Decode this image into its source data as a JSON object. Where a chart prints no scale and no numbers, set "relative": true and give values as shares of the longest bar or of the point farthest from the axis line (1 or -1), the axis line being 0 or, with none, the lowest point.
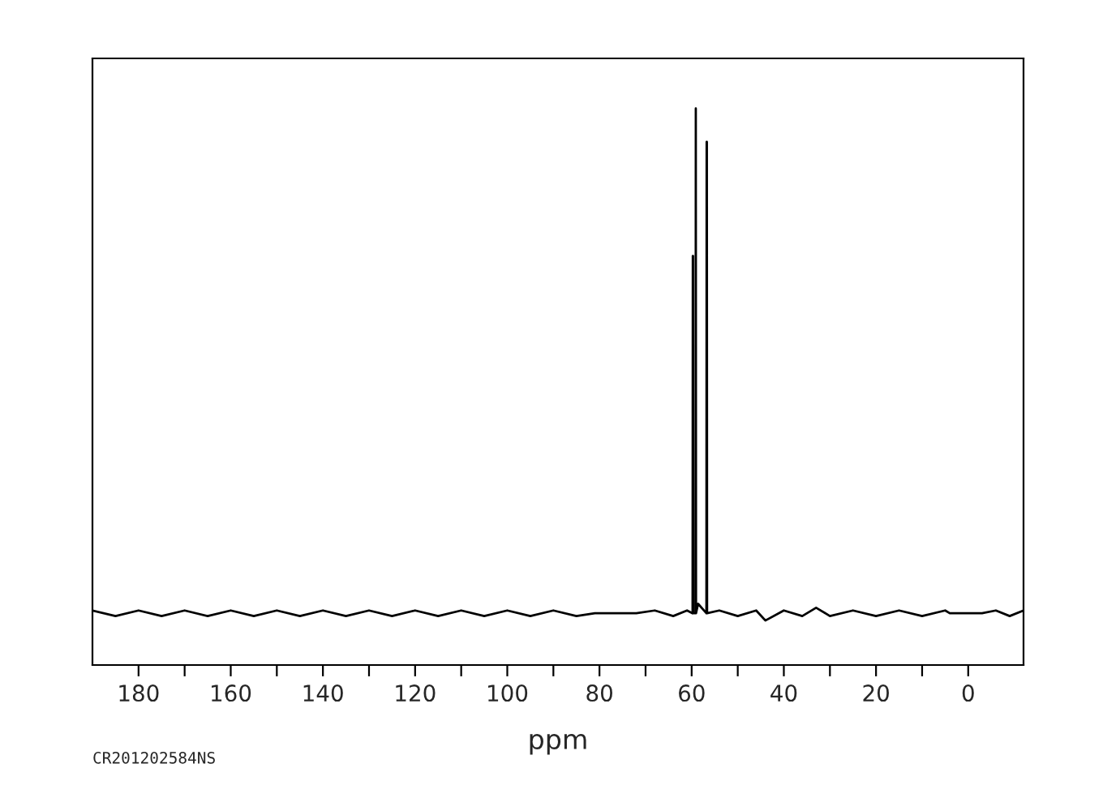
{
  "chart_data": {
    "type": "line",
    "relative": true,
    "xlabel": "ppm",
    "annotations": [
      "CR201202584NS"
    ],
    "xlim": [
      190,
      -12
    ],
    "xticks": [
      180,
      {
        "value": 170,
        "label": null
      },
      160,
      {
        "value": 150,
        "label": null
      },
      140,
      {
        "value": 130,
        "label": null
      },
      120,
      {
        "value": 110,
        "label": null
      },
      100,
      {
        "value": 90,
        "label": null
      },
      80,
      {
        "value": 70,
        "label": null
      },
      60,
      {
        "value": 50,
        "label": null
      },
      40,
      {
        "value": 30,
        "label": null
      },
      20,
      {
        "value": 10,
        "label": null
      },
      0
    ],
    "tick_labels": "x",
    "grid": false,
    "legend": false,
    "marker": "none",
    "line_style": "solid",
    "series": [
      {
        "color": "#000000",
        "x": [
          190,
          185,
          180,
          175,
          170,
          165,
          160,
          155,
          150,
          145,
          140,
          135,
          130,
          125,
          120,
          115,
          110,
          105,
          100,
          95,
          90,
          85,
          81,
          72,
          68,
          64,
          61,
          59.8,
          59.75,
          59.7,
          59.65,
          59.15,
          59.1,
          59.05,
          58.6,
          56.8,
          56.75,
          56.7,
          56.65,
          54,
          50,
          46,
          44,
          40,
          36,
          33,
          30,
          25,
          20,
          15,
          10,
          5,
          4,
          -3,
          -6,
          -9,
          -12
        ],
        "values": [
          0.098,
          0.088,
          0.098,
          0.088,
          0.098,
          0.088,
          0.098,
          0.088,
          0.098,
          0.088,
          0.098,
          0.088,
          0.098,
          0.088,
          0.098,
          0.088,
          0.098,
          0.088,
          0.098,
          0.088,
          0.098,
          0.088,
          0.093,
          0.093,
          0.098,
          0.088,
          0.098,
          0.093,
          0.735,
          0.735,
          0.093,
          0.093,
          1,
          0.093,
          0.11,
          0.093,
          0.94,
          0.94,
          0.093,
          0.098,
          0.088,
          0.098,
          0.08,
          0.098,
          0.088,
          0.103,
          0.088,
          0.098,
          0.088,
          0.098,
          0.088,
          0.098,
          0.093,
          0.093,
          0.098,
          0.088,
          0.098
        ]
      }
    ]
  }
}
